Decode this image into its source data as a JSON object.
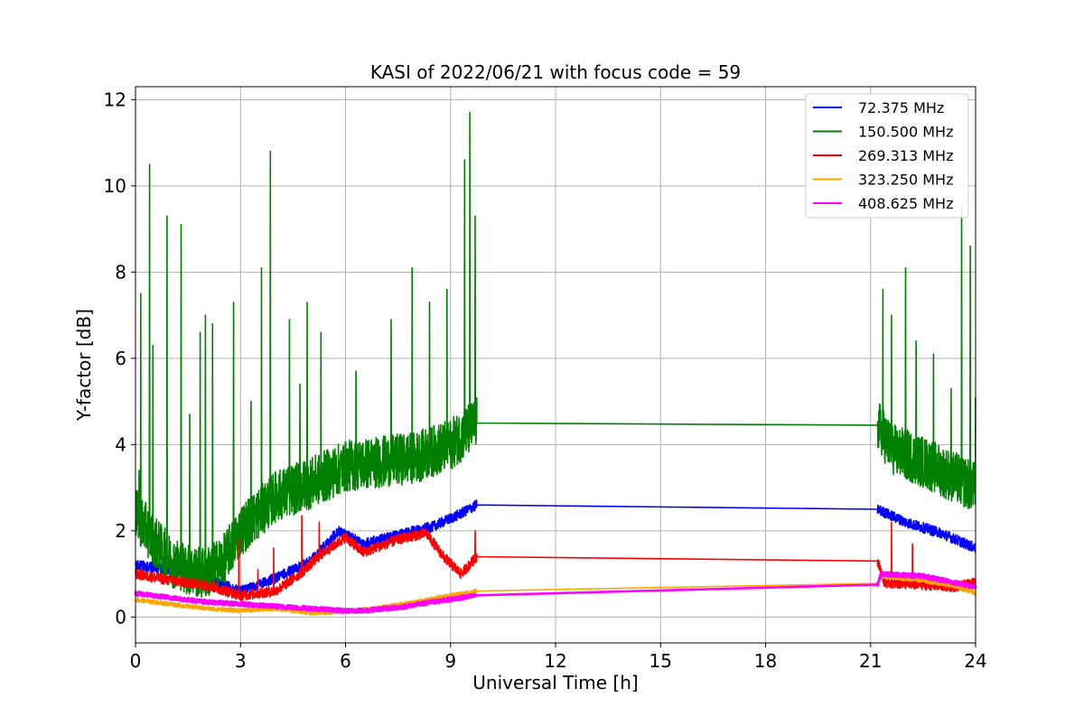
{
  "chart_data": {
    "type": "line",
    "title": "KASI of 2022/06/21 with focus code = 59",
    "xlabel": "Universal Time [h]",
    "ylabel": "Y-factor [dB]",
    "xlim": [
      0,
      24
    ],
    "ylim": [
      -0.6,
      12.3
    ],
    "xticks": [
      0,
      3,
      6,
      9,
      12,
      15,
      18,
      21,
      24
    ],
    "yticks": [
      0,
      2,
      4,
      6,
      8,
      10,
      12
    ],
    "grid": true,
    "legend_position": "top-right",
    "gap": [
      9.75,
      21.2
    ],
    "series": [
      {
        "name": " 72.375 MHz",
        "color": "#0000ff",
        "anchors": [
          [
            0,
            1.2
          ],
          [
            1.0,
            1.1
          ],
          [
            2.0,
            0.9
          ],
          [
            3.0,
            0.6
          ],
          [
            4.0,
            0.9
          ],
          [
            5.0,
            1.3
          ],
          [
            5.8,
            2.0
          ],
          [
            6.5,
            1.7
          ],
          [
            7.5,
            1.9
          ],
          [
            8.5,
            2.1
          ],
          [
            9.3,
            2.4
          ],
          [
            9.75,
            2.6
          ],
          [
            21.2,
            2.5
          ],
          [
            22.0,
            2.2
          ],
          [
            23.0,
            1.95
          ],
          [
            24.0,
            1.6
          ]
        ],
        "noise": 0.12,
        "spikes": []
      },
      {
        "name": "150.500 MHz",
        "color": "#008000",
        "anchors": [
          [
            0,
            2.4
          ],
          [
            0.5,
            1.8
          ],
          [
            1.0,
            1.3
          ],
          [
            1.5,
            1.1
          ],
          [
            2.0,
            1.0
          ],
          [
            2.5,
            1.3
          ],
          [
            3.0,
            2.0
          ],
          [
            3.5,
            2.4
          ],
          [
            4.0,
            2.8
          ],
          [
            5.0,
            3.1
          ],
          [
            6.0,
            3.5
          ],
          [
            7.0,
            3.6
          ],
          [
            8.0,
            3.7
          ],
          [
            9.0,
            4.0
          ],
          [
            9.75,
            4.5
          ],
          [
            21.2,
            4.45
          ],
          [
            21.6,
            3.9
          ],
          [
            22.5,
            3.6
          ],
          [
            23.5,
            3.2
          ],
          [
            24.0,
            3.0
          ]
        ],
        "noise": 0.6,
        "spikes": [
          [
            0.1,
            3.4
          ],
          [
            0.15,
            7.5
          ],
          [
            0.4,
            10.5
          ],
          [
            0.5,
            6.3
          ],
          [
            0.9,
            9.3
          ],
          [
            1.3,
            9.1
          ],
          [
            1.55,
            4.7
          ],
          [
            1.85,
            6.6
          ],
          [
            2.0,
            7.0
          ],
          [
            2.2,
            6.8
          ],
          [
            2.8,
            7.3
          ],
          [
            3.3,
            5.0
          ],
          [
            3.6,
            8.1
          ],
          [
            3.85,
            10.8
          ],
          [
            4.4,
            6.9
          ],
          [
            4.7,
            5.4
          ],
          [
            4.9,
            7.3
          ],
          [
            5.3,
            6.6
          ],
          [
            6.3,
            5.7
          ],
          [
            7.3,
            6.9
          ],
          [
            7.9,
            8.1
          ],
          [
            8.4,
            7.3
          ],
          [
            8.9,
            7.6
          ],
          [
            9.4,
            10.6
          ],
          [
            9.55,
            11.7
          ],
          [
            9.7,
            9.3
          ],
          [
            21.35,
            7.6
          ],
          [
            21.6,
            7.0
          ],
          [
            22.0,
            8.1
          ],
          [
            22.3,
            6.4
          ],
          [
            22.8,
            6.1
          ],
          [
            23.3,
            5.3
          ],
          [
            23.6,
            9.5
          ],
          [
            23.85,
            8.6
          ],
          [
            24.0,
            5.1
          ]
        ]
      },
      {
        "name": "269.313 MHz",
        "color": "#ff0000",
        "anchors": [
          [
            0,
            1.0
          ],
          [
            1.0,
            0.85
          ],
          [
            2.0,
            0.75
          ],
          [
            3.0,
            0.5
          ],
          [
            4.0,
            0.6
          ],
          [
            4.7,
            1.0
          ],
          [
            5.3,
            1.45
          ],
          [
            6.0,
            1.85
          ],
          [
            6.5,
            1.5
          ],
          [
            7.5,
            1.8
          ],
          [
            8.3,
            1.95
          ],
          [
            8.8,
            1.4
          ],
          [
            9.3,
            1.0
          ],
          [
            9.75,
            1.4
          ],
          [
            21.2,
            1.3
          ],
          [
            21.4,
            0.8
          ],
          [
            22.5,
            0.75
          ],
          [
            23.5,
            0.7
          ],
          [
            24.0,
            0.8
          ]
        ],
        "noise": 0.12,
        "spikes": [
          [
            2.95,
            1.8
          ],
          [
            3.5,
            1.1
          ],
          [
            3.95,
            1.6
          ],
          [
            4.75,
            2.35
          ],
          [
            5.25,
            2.2
          ],
          [
            9.7,
            2.0
          ],
          [
            21.6,
            2.2
          ],
          [
            22.2,
            1.7
          ]
        ]
      },
      {
        "name": "323.250 MHz",
        "color": "#ffa500",
        "anchors": [
          [
            0,
            0.4
          ],
          [
            1.0,
            0.3
          ],
          [
            2.0,
            0.2
          ],
          [
            3.0,
            0.15
          ],
          [
            4.0,
            0.2
          ],
          [
            5.0,
            0.1
          ],
          [
            6.0,
            0.12
          ],
          [
            7.0,
            0.22
          ],
          [
            8.0,
            0.35
          ],
          [
            9.0,
            0.5
          ],
          [
            9.75,
            0.6
          ],
          [
            9.8,
            0.78
          ],
          [
            21.2,
            0.78
          ],
          [
            21.3,
            0.95
          ],
          [
            22.5,
            0.85
          ],
          [
            23.5,
            0.7
          ],
          [
            24.0,
            0.55
          ]
        ],
        "noise": 0.05,
        "spikes": []
      },
      {
        "name": "408.625 MHz",
        "color": "#ff00ff",
        "anchors": [
          [
            0,
            0.55
          ],
          [
            1.0,
            0.45
          ],
          [
            2.0,
            0.35
          ],
          [
            3.0,
            0.3
          ],
          [
            4.0,
            0.25
          ],
          [
            5.0,
            0.2
          ],
          [
            6.0,
            0.15
          ],
          [
            6.5,
            0.15
          ],
          [
            7.5,
            0.22
          ],
          [
            8.5,
            0.35
          ],
          [
            9.75,
            0.5
          ],
          [
            9.8,
            0.72
          ],
          [
            21.2,
            0.75
          ],
          [
            21.3,
            1.0
          ],
          [
            22.5,
            0.95
          ],
          [
            23.5,
            0.78
          ],
          [
            24.0,
            0.7
          ]
        ],
        "noise": 0.05,
        "spikes": []
      }
    ]
  }
}
